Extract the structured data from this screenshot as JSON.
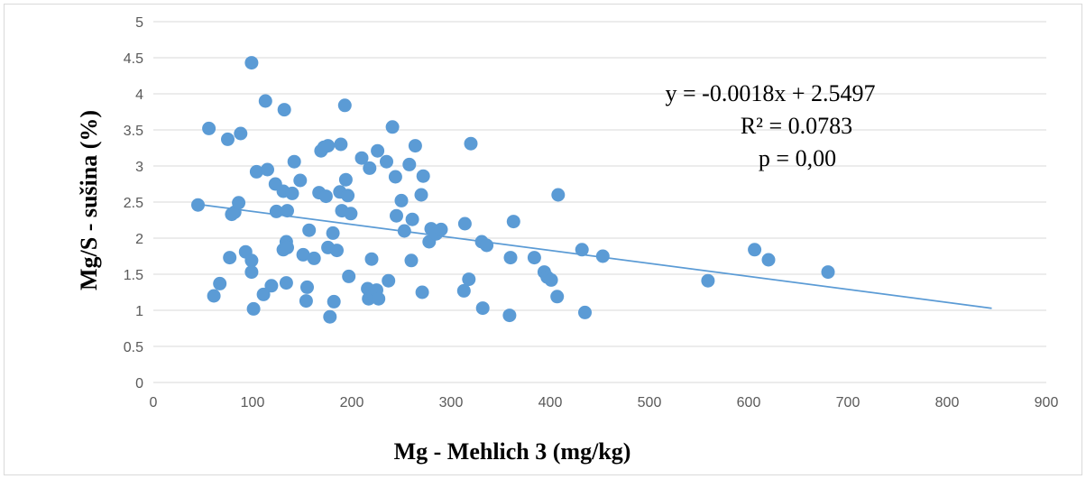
{
  "chart_data": {
    "type": "scatter",
    "title": "",
    "xlabel": "Mg - Mehlich 3 (mg/kg)",
    "ylabel": "Mg/S - sušina (%)",
    "xlim": [
      0,
      900
    ],
    "ylim": [
      0,
      5
    ],
    "x_ticks": [
      "0",
      "100",
      "200",
      "300",
      "400",
      "500",
      "600",
      "700",
      "800",
      "900"
    ],
    "y_ticks": [
      "0",
      "0.5",
      "1",
      "1.5",
      "2",
      "2.5",
      "3",
      "3.5",
      "4",
      "4.5",
      "5"
    ],
    "grid": "horizontal",
    "colors": {
      "marker": "#5b9bd5",
      "trendline": "#5b9bd5",
      "grid": "#d9d9d9"
    },
    "points": [
      [
        45,
        2.46
      ],
      [
        56,
        3.52
      ],
      [
        61,
        1.2
      ],
      [
        67,
        1.37
      ],
      [
        75,
        3.37
      ],
      [
        77,
        1.73
      ],
      [
        79,
        2.33
      ],
      [
        82,
        2.36
      ],
      [
        86,
        2.49
      ],
      [
        88,
        3.45
      ],
      [
        93,
        1.81
      ],
      [
        99,
        4.43
      ],
      [
        99,
        1.69
      ],
      [
        99,
        1.53
      ],
      [
        101,
        1.02
      ],
      [
        104,
        2.92
      ],
      [
        111,
        1.22
      ],
      [
        113,
        3.9
      ],
      [
        115,
        2.95
      ],
      [
        119,
        1.34
      ],
      [
        123,
        2.75
      ],
      [
        124,
        2.37
      ],
      [
        131,
        2.65
      ],
      [
        131,
        1.84
      ],
      [
        132,
        3.78
      ],
      [
        134,
        1.95
      ],
      [
        134,
        1.38
      ],
      [
        135,
        2.38
      ],
      [
        135,
        1.87
      ],
      [
        140,
        2.62
      ],
      [
        142,
        3.06
      ],
      [
        148,
        2.8
      ],
      [
        151,
        1.77
      ],
      [
        154,
        1.13
      ],
      [
        155,
        1.32
      ],
      [
        157,
        2.11
      ],
      [
        162,
        1.72
      ],
      [
        167,
        2.63
      ],
      [
        169,
        3.21
      ],
      [
        172,
        3.26
      ],
      [
        174,
        2.58
      ],
      [
        176,
        1.87
      ],
      [
        176,
        3.28
      ],
      [
        178,
        0.91
      ],
      [
        181,
        2.07
      ],
      [
        182,
        1.12
      ],
      [
        185,
        1.83
      ],
      [
        188,
        2.64
      ],
      [
        189,
        3.3
      ],
      [
        190,
        2.38
      ],
      [
        193,
        3.84
      ],
      [
        194,
        2.81
      ],
      [
        196,
        2.59
      ],
      [
        197,
        1.47
      ],
      [
        199,
        2.34
      ],
      [
        210,
        3.11
      ],
      [
        216,
        1.3
      ],
      [
        217,
        1.16
      ],
      [
        218,
        2.97
      ],
      [
        220,
        1.71
      ],
      [
        222,
        1.22
      ],
      [
        225,
        1.28
      ],
      [
        226,
        3.21
      ],
      [
        227,
        1.16
      ],
      [
        235,
        3.06
      ],
      [
        237,
        1.41
      ],
      [
        241,
        3.54
      ],
      [
        244,
        2.85
      ],
      [
        245,
        2.31
      ],
      [
        250,
        2.52
      ],
      [
        253,
        2.1
      ],
      [
        258,
        3.02
      ],
      [
        260,
        1.69
      ],
      [
        261,
        2.26
      ],
      [
        264,
        3.28
      ],
      [
        270,
        2.6
      ],
      [
        271,
        1.25
      ],
      [
        272,
        2.86
      ],
      [
        278,
        1.95
      ],
      [
        280,
        2.13
      ],
      [
        285,
        2.06
      ],
      [
        290,
        2.12
      ],
      [
        313,
        1.27
      ],
      [
        314,
        2.2
      ],
      [
        318,
        1.43
      ],
      [
        320,
        3.31
      ],
      [
        331,
        1.95
      ],
      [
        332,
        1.03
      ],
      [
        336,
        1.9
      ],
      [
        359,
        0.93
      ],
      [
        360,
        1.73
      ],
      [
        363,
        2.23
      ],
      [
        384,
        1.73
      ],
      [
        394,
        1.53
      ],
      [
        397,
        1.46
      ],
      [
        401,
        1.42
      ],
      [
        407,
        1.19
      ],
      [
        408,
        2.6
      ],
      [
        432,
        1.84
      ],
      [
        435,
        0.97
      ],
      [
        453,
        1.75
      ],
      [
        559,
        1.41
      ],
      [
        606,
        1.84
      ],
      [
        620,
        1.7
      ],
      [
        680,
        1.53
      ]
    ],
    "trendline": {
      "slope": -0.0018,
      "intercept": 2.5497,
      "x_range": [
        45,
        845
      ]
    },
    "annotations": [
      "y = -0.0018x + 2.5497",
      "R² = 0.0783",
      "p = 0,00"
    ]
  }
}
